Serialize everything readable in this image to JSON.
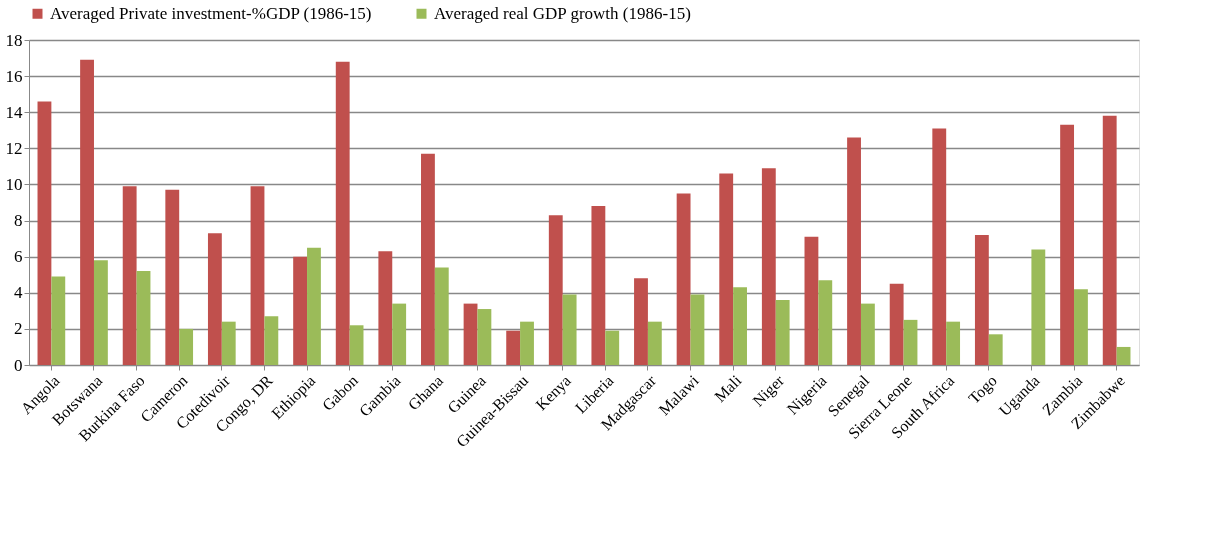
{
  "chart_data": {
    "type": "bar",
    "categories": [
      "Angola",
      "Botswana",
      "Burkina Faso",
      "Cameron",
      "Cotedivoir",
      "Congo, DR",
      "Ethiopia",
      "Gabon",
      "Gambia",
      "Ghana",
      "Guinea",
      "Guinea-Bissau",
      "Kenya",
      "Liberia",
      "Madgascar",
      "Malawi",
      "Mali",
      "Niger",
      "Nigeria",
      "Senegal",
      "Sierra Leone",
      "South Africa",
      "Togo",
      "Uganda",
      "Zambia",
      "Zimbabwe"
    ],
    "series": [
      {
        "name": "Averaged Private investment-%GDP (1986-15)",
        "color": "#c0504d",
        "values": [
          14.6,
          16.9,
          9.9,
          9.7,
          7.3,
          9.9,
          6.0,
          16.8,
          6.3,
          11.7,
          3.4,
          1.9,
          8.3,
          8.8,
          4.8,
          9.5,
          10.6,
          10.9,
          7.1,
          12.6,
          4.5,
          13.1,
          7.2,
          null,
          13.3,
          13.8
        ]
      },
      {
        "name": "Averaged real GDP growth (1986-15)",
        "color": "#9bbb59",
        "values": [
          4.9,
          5.8,
          5.2,
          2.0,
          2.4,
          2.7,
          6.5,
          2.2,
          3.4,
          5.4,
          3.1,
          2.4,
          3.9,
          1.9,
          2.4,
          3.9,
          4.3,
          3.6,
          4.7,
          3.4,
          2.5,
          2.4,
          1.7,
          6.4,
          4.2,
          1.0
        ]
      }
    ],
    "ylim": [
      0,
      18
    ],
    "yticks": [
      0,
      2,
      4,
      6,
      8,
      10,
      12,
      14,
      16,
      18
    ],
    "grid": "y",
    "legend": "top"
  }
}
